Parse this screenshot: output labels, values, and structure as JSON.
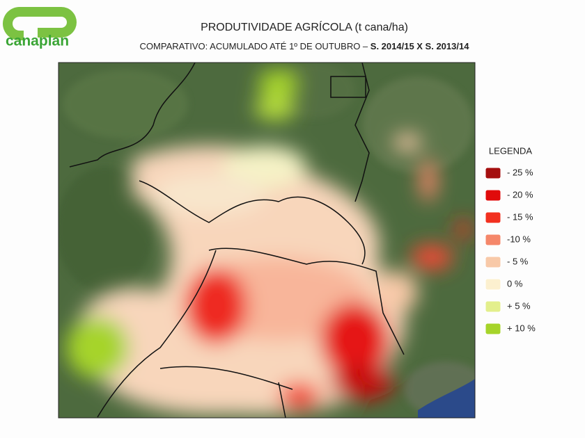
{
  "logo": {
    "text": "canaplan"
  },
  "header": {
    "title": "PRODUTIVIDADE AGRÍCOLA (t cana/ha)",
    "subtitle": "COMPARATIVO: ACUMULADO ATÉ 1º DE OUTUBRO – ",
    "subtitle_bold": "S. 2014/15 X S. 2013/14"
  },
  "legend": {
    "title": "LEGENDA",
    "items": [
      {
        "label": "- 25 %",
        "color": "#a50f0f"
      },
      {
        "label": "- 20 %",
        "color": "#e00b0b"
      },
      {
        "label": "- 15 %",
        "color": "#f2301f"
      },
      {
        "label": "-10 %",
        "color": "#f5876a"
      },
      {
        "label": "- 5 %",
        "color": "#f8c9a8"
      },
      {
        "label": "0 %",
        "color": "#fcf0cf"
      },
      {
        "label": "+ 5 %",
        "color": "#e3ef8c"
      },
      {
        "label": "+ 10 %",
        "color": "#a6d42a"
      }
    ]
  }
}
